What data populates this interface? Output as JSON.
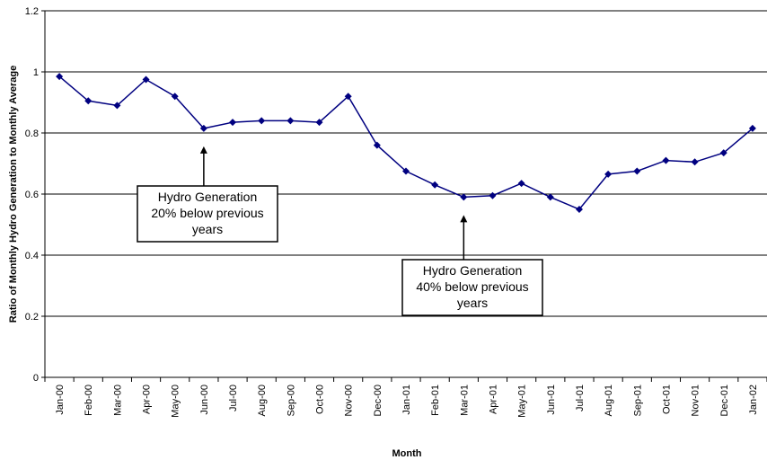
{
  "chart_data": {
    "type": "line",
    "title": "",
    "xlabel": "Month",
    "ylabel": "Ratio of Monthly Hydro Generation to Monthly Average",
    "ylim": [
      0,
      1.2
    ],
    "yticks": [
      "0",
      "0.2",
      "0.4",
      "0.6",
      "0.8",
      "1",
      "1.2"
    ],
    "grid": true,
    "legend": "none",
    "categories": [
      "Jan-00",
      "Feb-00",
      "Mar-00",
      "Apr-00",
      "May-00",
      "Jun-00",
      "Jul-00",
      "Aug-00",
      "Sep-00",
      "Oct-00",
      "Nov-00",
      "Dec-00",
      "Jan-01",
      "Feb-01",
      "Mar-01",
      "Apr-01",
      "May-01",
      "Jun-01",
      "Jul-01",
      "Aug-01",
      "Sep-01",
      "Oct-01",
      "Nov-01",
      "Dec-01",
      "Jan-02"
    ],
    "series": [
      {
        "color": "#000080",
        "values": [
          0.985,
          0.905,
          0.89,
          0.975,
          0.92,
          0.815,
          0.835,
          0.84,
          0.84,
          0.835,
          0.92,
          0.76,
          0.675,
          0.63,
          0.59,
          0.595,
          0.635,
          0.59,
          0.55,
          0.665,
          0.675,
          0.71,
          0.705,
          0.735,
          0.815
        ]
      }
    ],
    "annotations": [
      {
        "lines": [
          "Hydro Generation",
          "20% below previous",
          "years"
        ],
        "arrow_category": "Jun-00",
        "arrow_value": 0.815
      },
      {
        "lines": [
          "Hydro Generation",
          "40% below previous",
          "years"
        ],
        "arrow_category": "Mar-01",
        "arrow_value": 0.59
      }
    ]
  }
}
